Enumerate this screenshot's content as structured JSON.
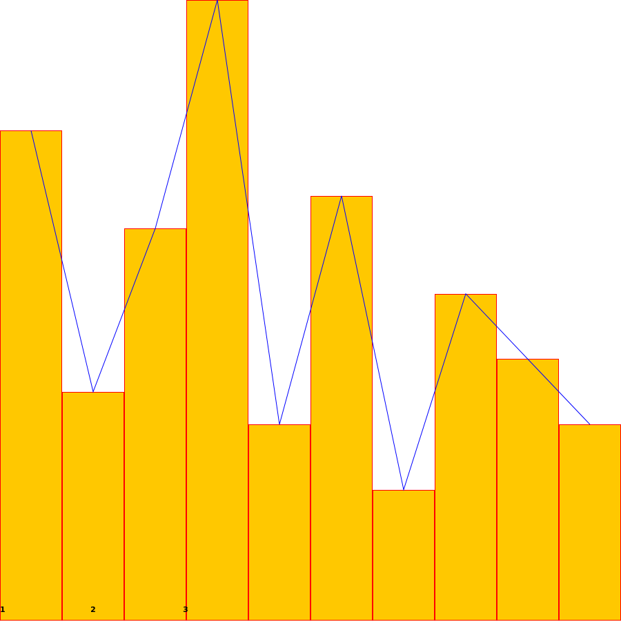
{
  "chart_data": {
    "type": "bar",
    "categories": [
      "1",
      "2",
      "3",
      "",
      "",
      "",
      "",
      "",
      "",
      ""
    ],
    "values": [
      75,
      35,
      60,
      95,
      30,
      65,
      20,
      50,
      40,
      30
    ],
    "ylim": [
      0,
      95
    ],
    "grid": false,
    "legend": "none",
    "line_overlay": {
      "type": "line",
      "values": [
        75,
        35,
        60,
        95,
        30,
        65,
        20,
        50,
        40,
        30
      ]
    },
    "colors": {
      "bar_fill": "#ffc800",
      "bar_stroke": "#ff0000",
      "line": "#0000ff",
      "background": "#ffffff",
      "tick_label": "#000000"
    }
  }
}
